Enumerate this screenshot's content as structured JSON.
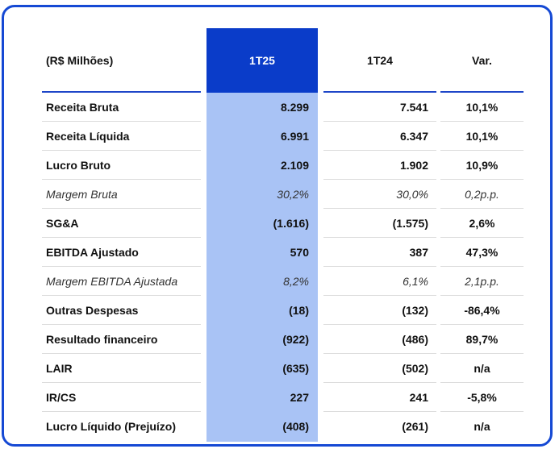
{
  "table": {
    "header": {
      "label": "(R$ Milhões)",
      "col1": "1T25",
      "col2": "1T24",
      "col3": "Var."
    },
    "rows": [
      {
        "label": "Receita Bruta",
        "v1": "8.299",
        "v2": "7.541",
        "var": "10,1%",
        "style": "bold"
      },
      {
        "label": "Receita Líquida",
        "v1": "6.991",
        "v2": "6.347",
        "var": "10,1%",
        "style": "bold"
      },
      {
        "label": "Lucro Bruto",
        "v1": "2.109",
        "v2": "1.902",
        "var": "10,9%",
        "style": "bold"
      },
      {
        "label": "Margem Bruta",
        "v1": "30,2%",
        "v2": "30,0%",
        "var": "0,2p.p.",
        "style": "italic"
      },
      {
        "label": "SG&A",
        "v1": "(1.616)",
        "v2": "(1.575)",
        "var": "2,6%",
        "style": "bold"
      },
      {
        "label": "EBITDA Ajustado",
        "v1": "570",
        "v2": "387",
        "var": "47,3%",
        "style": "bold"
      },
      {
        "label": "Margem EBITDA Ajustada",
        "v1": "8,2%",
        "v2": "6,1%",
        "var": "2,1p.p.",
        "style": "italic"
      },
      {
        "label": "Outras Despesas",
        "v1": "(18)",
        "v2": "(132)",
        "var": "-86,4%",
        "style": "bold"
      },
      {
        "label": "Resultado financeiro",
        "v1": "(922)",
        "v2": "(486)",
        "var": "89,7%",
        "style": "bold"
      },
      {
        "label": "LAIR",
        "v1": "(635)",
        "v2": "(502)",
        "var": "n/a",
        "style": "bold"
      },
      {
        "label": "IR/CS",
        "v1": "227",
        "v2": "241",
        "var": "-5,8%",
        "style": "bold"
      },
      {
        "label": "Lucro Líquido (Prejuízo)",
        "v1": "(408)",
        "v2": "(261)",
        "var": "n/a",
        "style": "bold"
      }
    ]
  },
  "colors": {
    "frame_border": "#1549d4",
    "header_highlight": "#0a3cc9",
    "column_highlight": "#a9c3f5",
    "underline": "#1e46c8"
  }
}
